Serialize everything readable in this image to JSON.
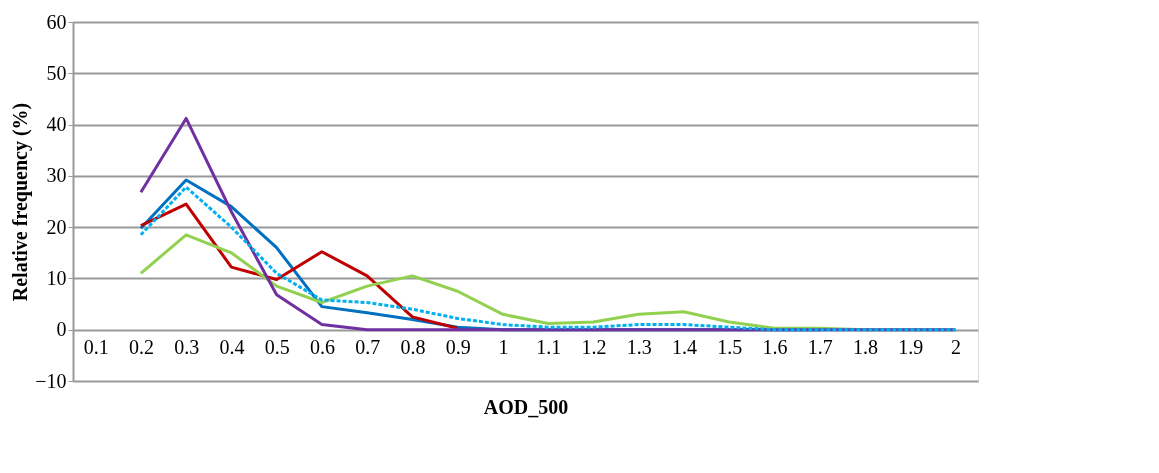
{
  "chart_data": {
    "type": "line",
    "xlabel": "AOD_500",
    "ylabel": "Relative frequency (%)",
    "categories": [
      "0.1",
      "0.2",
      "0.3",
      "0.4",
      "0.5",
      "0.6",
      "0.7",
      "0.8",
      "0.9",
      "1",
      "1.1",
      "1.2",
      "1.3",
      "1.4",
      "1.5",
      "1.6",
      "1.7",
      "1.8",
      "1.9",
      "2"
    ],
    "series": [
      {
        "color": "#0070c0",
        "line_style": "solid",
        "values": [
          null,
          19.8,
          29.2,
          24,
          16,
          4.5,
          3.3,
          2,
          0.5,
          0,
          0,
          0,
          0,
          0,
          0,
          0,
          0,
          null,
          null,
          null
        ]
      },
      {
        "color": "#00b0f0",
        "line_style": "dashed",
        "values": [
          null,
          18.5,
          27.8,
          20,
          11,
          5.8,
          5.3,
          4,
          2.2,
          1,
          0.5,
          0.5,
          1,
          1,
          0.5,
          0,
          0,
          0,
          0,
          0
        ]
      },
      {
        "color": "#c00000",
        "line_style": "solid",
        "values": [
          null,
          20.3,
          24.5,
          12.2,
          9.8,
          15.2,
          10.5,
          2.5,
          0.3,
          null,
          null,
          null,
          null,
          null,
          null,
          null,
          null,
          null,
          null,
          null
        ]
      },
      {
        "color": "#92d050",
        "line_style": "solid",
        "values": [
          null,
          11,
          18.5,
          15,
          8.5,
          5.3,
          8.5,
          10.5,
          7.5,
          3,
          1.2,
          1.5,
          3,
          3.5,
          1.5,
          0.3,
          0.3,
          0,
          0,
          0
        ]
      },
      {
        "color": "#7030a0",
        "line_style": "solid",
        "values": [
          null,
          26.8,
          41.2,
          23,
          6.8,
          1,
          0,
          0,
          0,
          0,
          0,
          0,
          0,
          0,
          0,
          0,
          0,
          0,
          0,
          0
        ]
      }
    ],
    "ylim": [
      -10,
      60
    ],
    "yticks": [
      -10,
      0,
      10,
      20,
      30,
      40,
      50,
      60
    ],
    "grid": "y",
    "legend": false,
    "marker": "none"
  }
}
